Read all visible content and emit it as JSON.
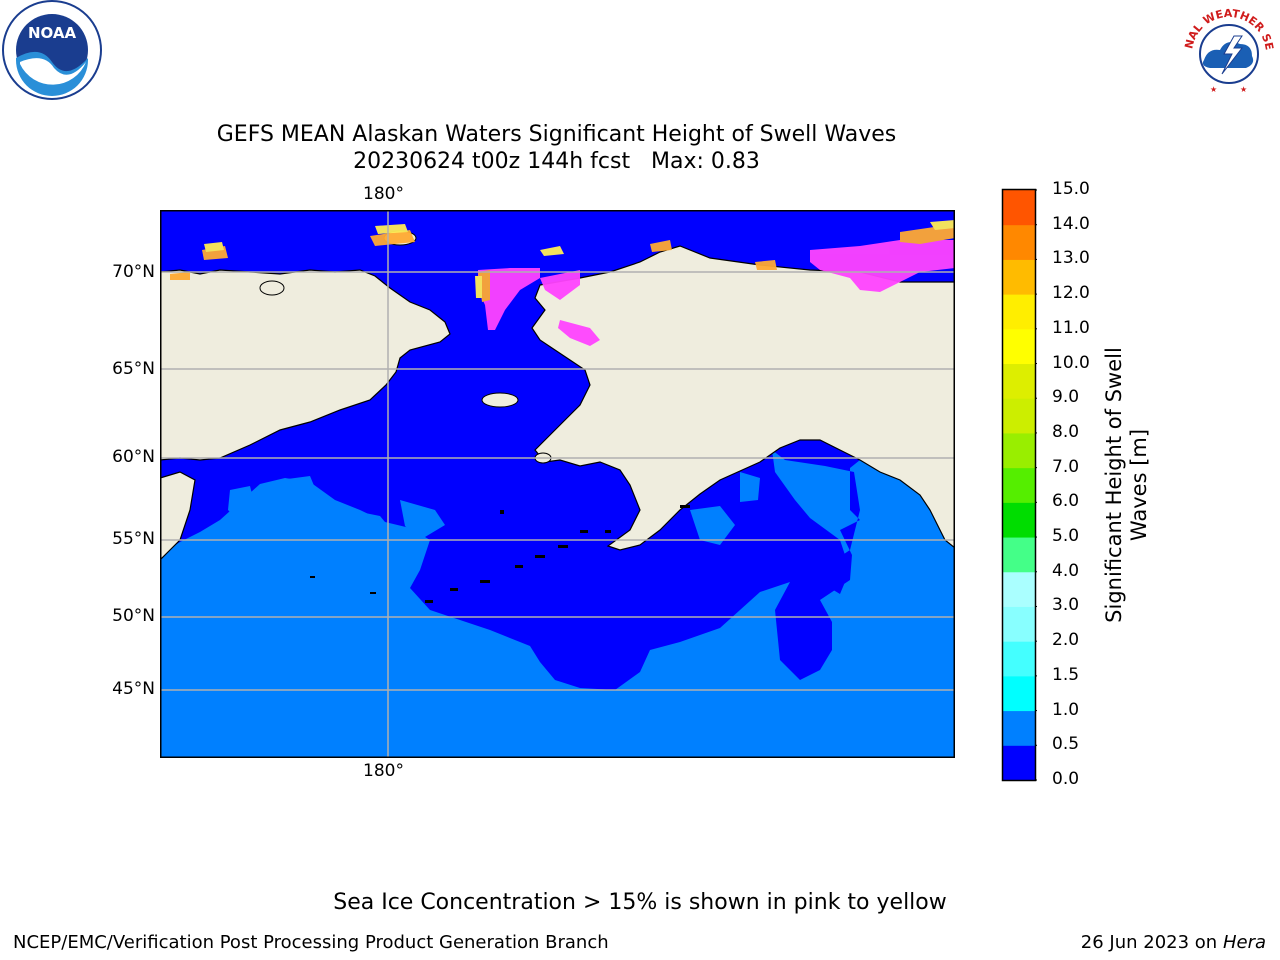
{
  "title": {
    "line1": "GEFS MEAN Alaskan Waters Significant Height of Swell Waves",
    "line2": "20230624 t00z 144h fcst   Max: 0.83"
  },
  "map": {
    "lon_label_top": "180°",
    "lon_label_bottom": "180°",
    "lat_labels": [
      "70°N",
      "65°N",
      "60°N",
      "55°N",
      "50°N",
      "45°N"
    ],
    "colors": {
      "land": "#efedde",
      "ocean_0_05": "#0000ff",
      "ocean_05_1": "#0080ff",
      "grid": "#b0b0b0",
      "ice_pink": "#ff44ff",
      "ice_orange": "#ffaa33",
      "ice_yellow": "#ffee55"
    }
  },
  "colorbar": {
    "label": "Significant Height of Swell Waves [m]",
    "ticks": [
      "15.0",
      "14.0",
      "13.0",
      "12.0",
      "11.0",
      "10.0",
      "9.0",
      "8.0",
      "7.0",
      "6.0",
      "5.0",
      "4.0",
      "3.0",
      "2.0",
      "1.5",
      "1.0",
      "0.5",
      "0.0"
    ],
    "colors": [
      "#0000ff",
      "#0080ff",
      "#00ffff",
      "#44ffff",
      "#88ffff",
      "#aaffff",
      "#44ff88",
      "#00dd00",
      "#55ee00",
      "#99ee00",
      "#ccee00",
      "#ddee00",
      "#ffff00",
      "#ffee00",
      "#ffbb00",
      "#ff8800",
      "#ff5500",
      "#ff2200",
      "#ff0000"
    ]
  },
  "footnote": "Sea Ice Concentration > 15% is shown in pink to yellow",
  "credit": "NCEP/EMC/Verification Post Processing Product Generation Branch",
  "date": {
    "text": "26 Jun 2023 on",
    "host": "Hera"
  },
  "logos": {
    "noaa": "NOAA",
    "nws": "NATIONAL WEATHER SERVICE"
  }
}
